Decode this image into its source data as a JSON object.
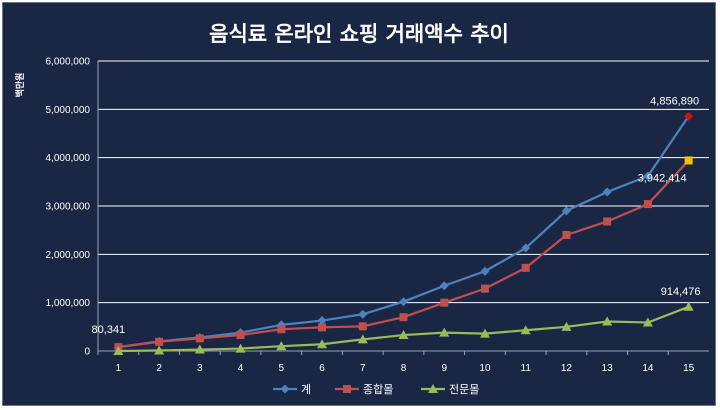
{
  "chart_data": {
    "type": "line",
    "title": "음식료 온라인 쇼핑 거래액수 추이",
    "ylabel": "백만원",
    "xlabel": "",
    "x": [
      1,
      2,
      3,
      4,
      5,
      6,
      7,
      8,
      9,
      10,
      11,
      12,
      13,
      14,
      15
    ],
    "y_ticks": [
      "0",
      "1,000,000",
      "2,000,000",
      "3,000,000",
      "4,000,000",
      "5,000,000",
      "6,000,000"
    ],
    "ylim": [
      0,
      6000000
    ],
    "grid": true,
    "legend_position": "bottom",
    "series": [
      {
        "name": "계",
        "color": "#4f81bd",
        "marker": "diamond",
        "values": [
          80341,
          200000,
          280000,
          380000,
          540000,
          630000,
          760000,
          1020000,
          1350000,
          1650000,
          2130000,
          2900000,
          3290000,
          3620000,
          4856890
        ]
      },
      {
        "name": "종합몰",
        "color": "#c0504d",
        "marker": "square",
        "values": [
          80000,
          190000,
          260000,
          330000,
          450000,
          490000,
          510000,
          700000,
          1000000,
          1290000,
          1720000,
          2400000,
          2680000,
          3040000,
          3942414
        ]
      },
      {
        "name": "전문몰",
        "color": "#9bbb59",
        "marker": "triangle",
        "values": [
          0,
          10000,
          30000,
          50000,
          100000,
          140000,
          240000,
          330000,
          380000,
          360000,
          430000,
          500000,
          610000,
          590000,
          914476
        ]
      }
    ],
    "annotations": [
      {
        "text": "80,341",
        "series": 0,
        "index": 0
      },
      {
        "text": "4,856,890",
        "series": 0,
        "index": 14
      },
      {
        "text": "3,942,414",
        "series": 1,
        "index": 14
      },
      {
        "text": "914,476",
        "series": 2,
        "index": 14
      }
    ],
    "highlight_points": [
      {
        "series": 0,
        "index": 14,
        "color": "#d01010"
      },
      {
        "series": 1,
        "index": 14,
        "color": "#ffc000"
      }
    ]
  }
}
